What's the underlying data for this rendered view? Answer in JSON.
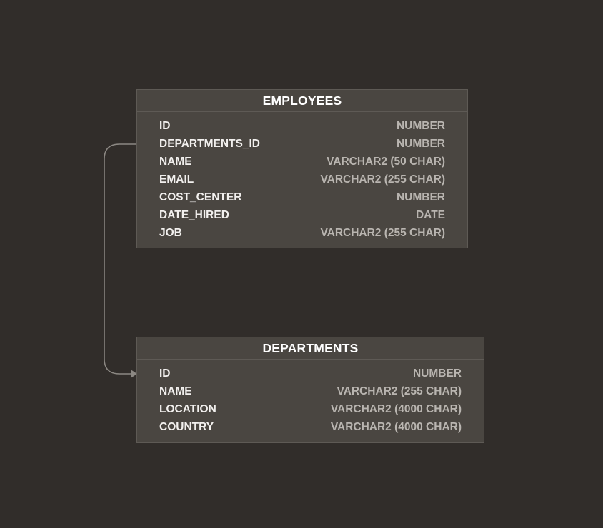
{
  "diagram": {
    "background_color": "#312d2a",
    "entities": [
      {
        "title": "EMPLOYEES",
        "columns": [
          {
            "name": "ID",
            "type": "NUMBER"
          },
          {
            "name": "DEPARTMENTS_ID",
            "type": "NUMBER"
          },
          {
            "name": "NAME",
            "type": "VARCHAR2 (50 CHAR)"
          },
          {
            "name": "EMAIL",
            "type": "VARCHAR2 (255 CHAR)"
          },
          {
            "name": "COST_CENTER",
            "type": "NUMBER"
          },
          {
            "name": "DATE_HIRED",
            "type": "DATE"
          },
          {
            "name": "JOB",
            "type": "VARCHAR2 (255 CHAR)"
          }
        ]
      },
      {
        "title": "DEPARTMENTS",
        "columns": [
          {
            "name": "ID",
            "type": "NUMBER"
          },
          {
            "name": "NAME",
            "type": "VARCHAR2 (255 CHAR)"
          },
          {
            "name": "LOCATION",
            "type": "VARCHAR2 (4000 CHAR)"
          },
          {
            "name": "COUNTRY",
            "type": "VARCHAR2 (4000 CHAR)"
          }
        ]
      }
    ],
    "relationships": [
      {
        "from": "EMPLOYEES.DEPARTMENTS_ID",
        "to": "DEPARTMENTS.ID",
        "arrow_icon": "triangle-arrow-right"
      }
    ]
  }
}
